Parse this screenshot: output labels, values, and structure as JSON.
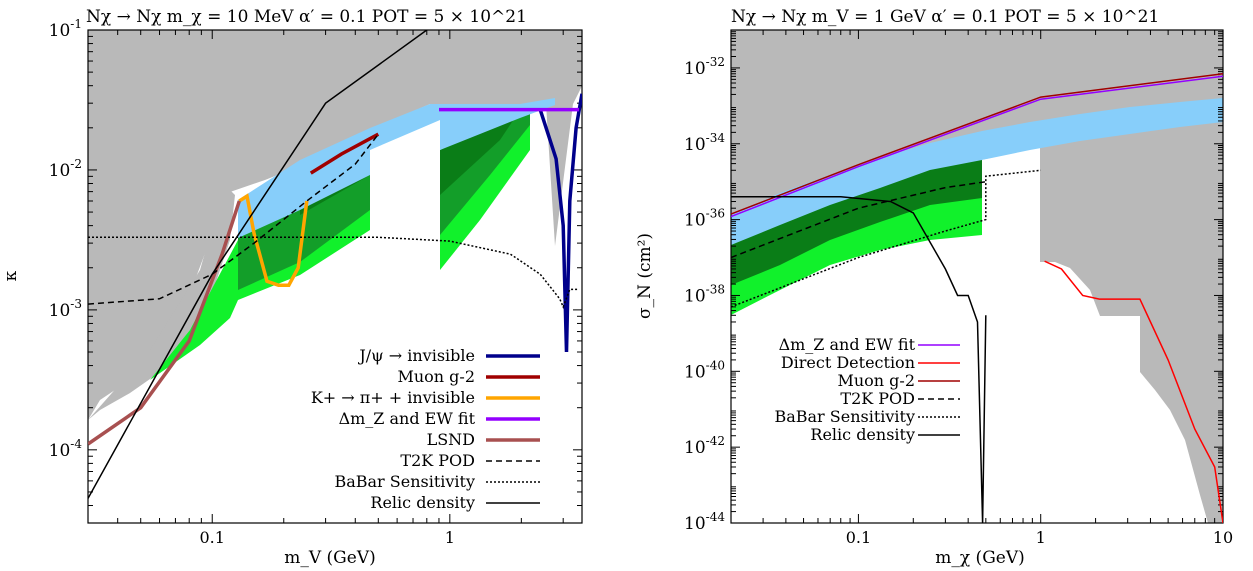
{
  "chart_data": [
    {
      "type": "area",
      "title": "Nχ → Nχ   m_χ = 10 MeV   α′ = 0.1   POT = 5 × 10^21",
      "xlabel": "m_V (GeV)",
      "ylabel": "κ",
      "xscale": "log",
      "yscale": "log",
      "xlim": [
        0.03,
        3.6
      ],
      "ylim": [
        3e-05,
        0.1
      ],
      "x_ticks": [
        "0.1",
        "1"
      ],
      "y_ticks": [
        "10^-4",
        "10^-3",
        "10^-2",
        "10^-1"
      ],
      "legend_position": "bottom-right",
      "colors": {
        "excluded": "#b9b9b9",
        "band_blue": "#87cefa",
        "band_darkgreen": "#0a7d17",
        "band_green": "#139e29",
        "band_lightgreen": "#11f12b",
        "jpsi": "#00008b",
        "muon": "#a00000",
        "kaon": "#ffa500",
        "ew": "#9400ff",
        "lsnd": "#a85050"
      },
      "series": [
        {
          "name": "J/ψ → invisible",
          "style": "thick-line",
          "color": "#00008b",
          "x": [
            2.4,
            2.8,
            3.0,
            3.097,
            3.2,
            3.4,
            3.6
          ],
          "y": [
            0.027,
            0.012,
            0.004,
            0.0005,
            0.006,
            0.02,
            0.035
          ]
        },
        {
          "name": "Muon g-2",
          "style": "thick-line",
          "color": "#a00000",
          "x": [
            0.26,
            0.35,
            0.5
          ],
          "y": [
            0.0095,
            0.013,
            0.018
          ]
        },
        {
          "name": "K+ → π+ + invisible",
          "style": "thick-line",
          "color": "#ffa500",
          "x": [
            0.13,
            0.14,
            0.15,
            0.17,
            0.19,
            0.21,
            0.23,
            0.25
          ],
          "y": [
            0.006,
            0.0065,
            0.0035,
            0.0016,
            0.0015,
            0.0015,
            0.002,
            0.006
          ]
        },
        {
          "name": "Δm_Z and EW fit",
          "style": "thick-line",
          "color": "#9400ff",
          "x": [
            0.9,
            1.5,
            2.4,
            3.5
          ],
          "y": [
            0.027,
            0.027,
            0.027,
            0.027
          ]
        },
        {
          "name": "LSND",
          "style": "thick-line",
          "color": "#a85050",
          "x": [
            0.03,
            0.05,
            0.08,
            0.11,
            0.13
          ],
          "y": [
            0.00011,
            0.0002,
            0.0006,
            0.0025,
            0.006
          ]
        },
        {
          "name": "T2K POD",
          "style": "dashed",
          "x": [
            0.03,
            0.06,
            0.1,
            0.15,
            0.25,
            0.4,
            0.5
          ],
          "y": [
            0.0011,
            0.0012,
            0.0018,
            0.003,
            0.006,
            0.011,
            0.018
          ]
        },
        {
          "name": "BaBar Sensitivity",
          "style": "dotted",
          "x": [
            0.03,
            0.5,
            1.0,
            1.8,
            2.4,
            2.9,
            3.0,
            3.2,
            3.5
          ],
          "y": [
            0.0033,
            0.0033,
            0.0031,
            0.0025,
            0.0018,
            0.0012,
            0.00105,
            0.0014,
            0.0014
          ]
        },
        {
          "name": "Relic density",
          "style": "solid",
          "x": [
            0.03,
            0.1,
            0.3,
            0.8
          ],
          "y": [
            4.5e-05,
            0.0018,
            0.03,
            0.1
          ]
        }
      ]
    },
    {
      "type": "area",
      "title": "Nχ → Nχ   m_V = 1 GeV   α′ = 0.1   POT = 5 × 10^21",
      "xlabel": "m_χ (GeV)",
      "ylabel": "σ_N (cm²)",
      "xscale": "log",
      "yscale": "log",
      "xlim": [
        0.02,
        10
      ],
      "ylim": [
        1e-44,
        1e-31
      ],
      "x_ticks": [
        "0.1",
        "1",
        "10"
      ],
      "y_ticks": [
        "10^-44",
        "10^-42",
        "10^-40",
        "10^-38",
        "10^-36",
        "10^-34",
        "10^-32"
      ],
      "legend_position": "middle-left",
      "colors": {
        "excluded": "#b9b9b9",
        "band_blue": "#87cefa",
        "band_darkgreen": "#0a7d17",
        "band_lightgreen": "#11f12b",
        "ew": "#9400ff",
        "direct": "#ff0000",
        "muon": "#a00000"
      },
      "series": [
        {
          "name": "Δm_Z and EW fit",
          "style": "line",
          "color": "#9400ff",
          "x": [
            0.02,
            0.1,
            1,
            10
          ],
          "y": [
            1.2e-36,
            2.5e-35,
            1.5e-33,
            6e-33
          ]
        },
        {
          "name": "Direct Detection",
          "style": "line",
          "color": "#ff0000",
          "x": [
            1.05,
            1.3,
            1.7,
            2.1,
            3.5,
            5.0,
            7.0,
            9.0,
            10.0
          ],
          "y": [
            8e-38,
            5e-38,
            1e-38,
            8e-39,
            8e-39,
            2e-40,
            3e-42,
            3e-43,
            1e-44
          ]
        },
        {
          "name": "Muon g-2",
          "style": "line",
          "color": "#a00000",
          "x": [
            0.02,
            0.1,
            1,
            10
          ],
          "y": [
            1.4e-36,
            2.8e-35,
            1.7e-33,
            7e-33
          ]
        },
        {
          "name": "T2K POD",
          "style": "dashed",
          "x": [
            0.02,
            0.1,
            0.3,
            0.5
          ],
          "y": [
            1e-37,
            2e-36,
            7e-36,
            1e-35
          ]
        },
        {
          "name": "BaBar Sensitivity",
          "style": "dotted",
          "x": [
            0.02,
            0.1,
            0.3,
            0.5,
            0.5,
            1.0
          ],
          "y": [
            5e-39,
            1e-37,
            5e-37,
            1e-36,
            1.4e-35,
            2e-35
          ]
        },
        {
          "name": "Relic density",
          "style": "solid",
          "x": [
            0.02,
            0.08,
            0.15,
            0.2,
            0.3,
            0.35,
            0.4,
            0.45,
            0.48,
            0.5,
            0.48
          ],
          "y": [
            4e-36,
            4e-36,
            3e-36,
            1.5e-36,
            5e-38,
            1e-38,
            1e-38,
            2e-39,
            1e-44,
            3e-39,
            1e-44
          ]
        }
      ]
    }
  ]
}
